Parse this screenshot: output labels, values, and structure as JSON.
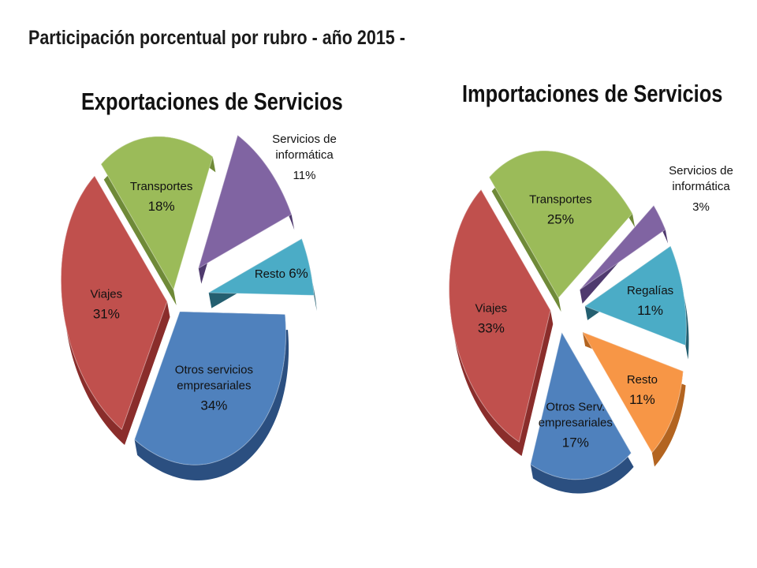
{
  "page_title": "Participación porcentual por rubro - año 2015 -",
  "chart_data": [
    {
      "type": "pie",
      "title": "Exportaciones de Servicios",
      "slices": [
        {
          "label_lines": [
            "Transportes"
          ],
          "pct_label": "18%",
          "value": 18,
          "color": "#9bbb59",
          "side": "#6f8a38",
          "explode": 10,
          "label_pos": "inside"
        },
        {
          "label_lines": [
            "Servicios de",
            "informática"
          ],
          "pct_label": "11%",
          "value": 11,
          "color": "#8064a2",
          "side": "#4f3a6e",
          "explode": 44,
          "label_pos": "outside"
        },
        {
          "label_lines": [
            "Resto"
          ],
          "pct_label": "6%",
          "value": 6,
          "color": "#4bacc6",
          "side": "#245f70",
          "explode": 44,
          "label_pos": "inside-inline"
        },
        {
          "label_lines": [
            "Otros servicios",
            "empresariales"
          ],
          "pct_label": "34%",
          "value": 34,
          "color": "#4f81bd",
          "side": "#2b4f80",
          "explode": 10,
          "label_pos": "inside"
        },
        {
          "label_lines": [
            "Viajes"
          ],
          "pct_label": "31%",
          "value": 31,
          "color": "#c0504d",
          "side": "#8a2d2b",
          "explode": 10,
          "label_pos": "inside"
        }
      ]
    },
    {
      "type": "pie",
      "title": "Importaciones de Servicios",
      "slices": [
        {
          "label_lines": [
            "Transportes"
          ],
          "pct_label": "25%",
          "value": 25,
          "color": "#9bbb59",
          "side": "#6f8a38",
          "explode": 10,
          "label_pos": "inside"
        },
        {
          "label_lines": [
            "Servicios de",
            "informática"
          ],
          "pct_label": "3%",
          "value": 3,
          "color": "#8064a2",
          "side": "#4f3a6e",
          "explode": 34,
          "label_pos": "outside"
        },
        {
          "label_lines": [
            "Regalías"
          ],
          "pct_label": "11%",
          "value": 11,
          "color": "#4bacc6",
          "side": "#245f70",
          "explode": 34,
          "label_pos": "inside"
        },
        {
          "label_lines": [
            "Resto"
          ],
          "pct_label": "11%",
          "value": 11,
          "color": "#f79646",
          "side": "#b36420",
          "explode": 34,
          "label_pos": "inside"
        },
        {
          "label_lines": [
            "Otros Serv.",
            "empresariales"
          ],
          "pct_label": "17%",
          "value": 17,
          "color": "#4f81bd",
          "side": "#2b4f80",
          "explode": 20,
          "label_pos": "inside"
        },
        {
          "label_lines": [
            "Viajes"
          ],
          "pct_label": "33%",
          "value": 33,
          "color": "#c0504d",
          "side": "#8a2d2b",
          "explode": 10,
          "label_pos": "inside"
        }
      ]
    }
  ]
}
